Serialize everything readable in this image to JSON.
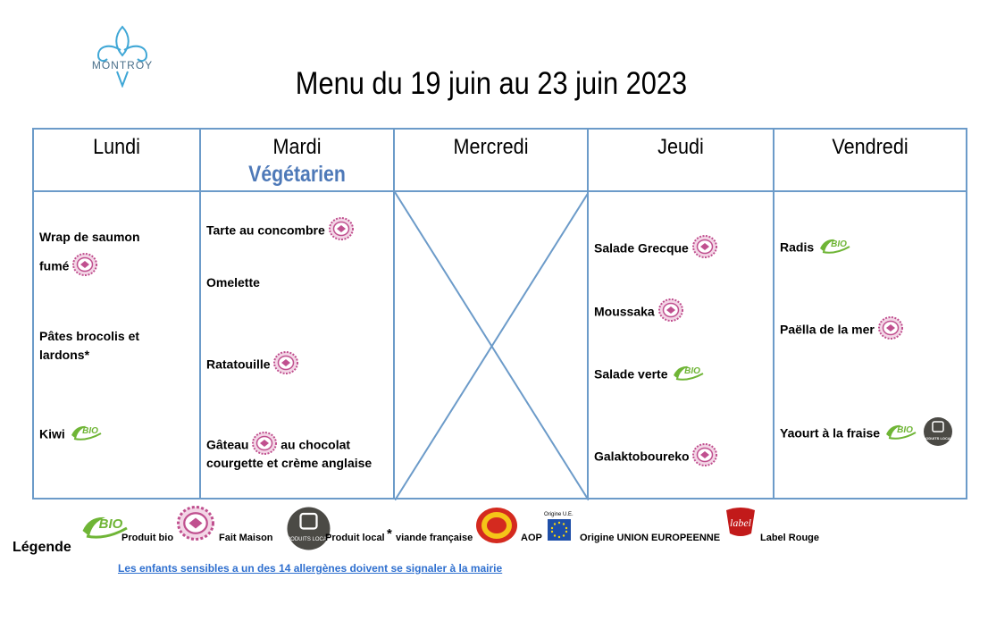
{
  "logo": {
    "text": "MONTROY"
  },
  "title": "Menu du 19 juin au 23 juin 2023",
  "days": [
    "Lundi",
    "Mardi",
    "Mercredi",
    "Jeudi",
    "Vendredi"
  ],
  "mardi_theme": "Végétarien",
  "menu": {
    "lundi": [
      "Wrap de saumon",
      "fumé",
      "Pâtes brocolis et",
      "lardons*",
      "Kiwi"
    ],
    "mardi": [
      "Tarte au concombre",
      "Omelette",
      "Ratatouille",
      "Gâteau",
      "au chocolat",
      "courgette et crème anglaise"
    ],
    "jeudi": [
      "Salade Grecque",
      "Moussaka",
      "Salade verte",
      "Galaktoboureko"
    ],
    "vendredi": [
      "Radis",
      "Paëlla de la mer",
      "Yaourt à la fraise"
    ]
  },
  "legend": {
    "title": "Légende",
    "bio": "Produit bio",
    "fait_maison": "Fait Maison",
    "local": "Produit local",
    "star": "*",
    "viande": "viande française",
    "aop": "AOP",
    "origine_ue_small": "Origine U.E.",
    "origine_ue": "Origine UNION EUROPEENNE",
    "label_rouge": "Label Rouge",
    "bio_logo_text": "BIO",
    "local_logo_text": "PRODUITS LOCAUX",
    "label_rouge_logo_text": "label"
  },
  "note": "Les enfants sensibles a un des 14 allergènes doivent se signaler à la mairie",
  "colors": {
    "border": "#6c9bc9",
    "veg": "#4e79b8",
    "fait_maison": "#c0508f",
    "bio": "#6fb536",
    "local": "#4b4a45",
    "aop": "#d42a1f",
    "label_rouge": "#c21a1a",
    "note": "#2e6fcf"
  }
}
